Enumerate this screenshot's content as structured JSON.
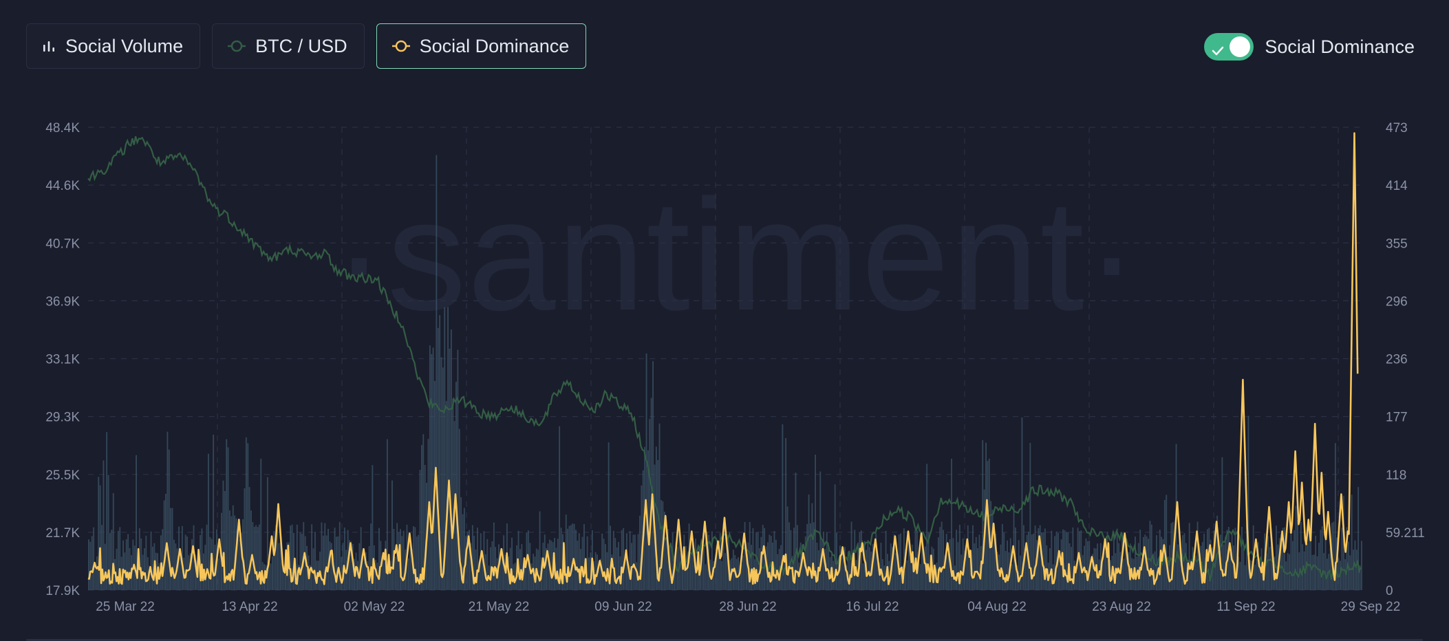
{
  "toolbar": {
    "metrics": [
      {
        "label": "Social Volume",
        "icon": "bar-chart-icon",
        "color": "#e4e8f1",
        "active": false
      },
      {
        "label": "BTC / USD",
        "icon": "circle-line-icon",
        "color": "#335e45",
        "active": false
      },
      {
        "label": "Social Dominance",
        "icon": "circle-line-icon",
        "color": "#f7c65b",
        "active": true
      }
    ]
  },
  "toggle": {
    "label": "Social Dominance",
    "on": true,
    "color": "#40b98d"
  },
  "watermark": "·santiment·",
  "chart_data": {
    "type": "line",
    "x_ticks": [
      "25 Mar 22",
      "13 Apr 22",
      "02 May 22",
      "21 May 22",
      "09 Jun 22",
      "28 Jun 22",
      "16 Jul 22",
      "04 Aug 22",
      "23 Aug 22",
      "11 Sep 22",
      "29 Sep 22"
    ],
    "y_left_ticks": [
      "48.4K",
      "44.6K",
      "40.7K",
      "36.9K",
      "33.1K",
      "29.3K",
      "25.5K",
      "21.7K",
      "17.9K"
    ],
    "y_right_ticks": [
      "473",
      "414",
      "355",
      "296",
      "236",
      "177",
      "118",
      "59.211",
      "0"
    ],
    "x_range": [
      "2022-03-20",
      "2022-09-30"
    ],
    "y_left_range": [
      17900,
      48400
    ],
    "y_right_range": [
      0,
      473
    ],
    "grid": true,
    "colors": {
      "btc": "#335e45",
      "social_dominance": "#f7c65b",
      "social_volume": "#3c5468"
    },
    "series": [
      {
        "name": "BTC / USD",
        "axis": "left",
        "points": [
          [
            "2022-03-20",
            45000
          ],
          [
            "2022-03-23",
            45800
          ],
          [
            "2022-03-26",
            47200
          ],
          [
            "2022-03-28",
            47800
          ],
          [
            "2022-03-31",
            46000
          ],
          [
            "2022-04-03",
            46500
          ],
          [
            "2022-04-05",
            45700
          ],
          [
            "2022-04-08",
            43200
          ],
          [
            "2022-04-10",
            42600
          ],
          [
            "2022-04-12",
            41800
          ],
          [
            "2022-04-15",
            40400
          ],
          [
            "2022-04-17",
            39700
          ],
          [
            "2022-04-20",
            40400
          ],
          [
            "2022-04-23",
            39800
          ],
          [
            "2022-04-25",
            40200
          ],
          [
            "2022-04-27",
            38900
          ],
          [
            "2022-04-30",
            38500
          ],
          [
            "2022-05-03",
            38400
          ],
          [
            "2022-05-05",
            36700
          ],
          [
            "2022-05-07",
            35400
          ],
          [
            "2022-05-09",
            32300
          ],
          [
            "2022-05-11",
            30200
          ],
          [
            "2022-05-13",
            29700
          ],
          [
            "2022-05-15",
            30300
          ],
          [
            "2022-05-17",
            30300
          ],
          [
            "2022-05-19",
            29500
          ],
          [
            "2022-05-21",
            29400
          ],
          [
            "2022-05-23",
            30000
          ],
          [
            "2022-05-26",
            29300
          ],
          [
            "2022-05-28",
            28700
          ],
          [
            "2022-05-30",
            30600
          ],
          [
            "2022-06-01",
            31700
          ],
          [
            "2022-06-03",
            30500
          ],
          [
            "2022-06-05",
            29800
          ],
          [
            "2022-06-07",
            30800
          ],
          [
            "2022-06-09",
            30100
          ],
          [
            "2022-06-11",
            29400
          ],
          [
            "2022-06-13",
            26500
          ],
          [
            "2022-06-15",
            22600
          ],
          [
            "2022-06-18",
            19200
          ],
          [
            "2022-06-20",
            20500
          ],
          [
            "2022-06-23",
            21100
          ],
          [
            "2022-06-26",
            21300
          ],
          [
            "2022-06-29",
            20200
          ],
          [
            "2022-07-01",
            19400
          ],
          [
            "2022-07-04",
            19300
          ],
          [
            "2022-07-07",
            20600
          ],
          [
            "2022-07-09",
            21700
          ],
          [
            "2022-07-12",
            19900
          ],
          [
            "2022-07-14",
            20200
          ],
          [
            "2022-07-17",
            21000
          ],
          [
            "2022-07-19",
            22400
          ],
          [
            "2022-07-21",
            23200
          ],
          [
            "2022-07-23",
            22800
          ],
          [
            "2022-07-26",
            21300
          ],
          [
            "2022-07-28",
            23900
          ],
          [
            "2022-07-30",
            23700
          ],
          [
            "2022-08-02",
            23000
          ],
          [
            "2022-08-04",
            22700
          ],
          [
            "2022-08-06",
            23300
          ],
          [
            "2022-08-09",
            23300
          ],
          [
            "2022-08-11",
            24500
          ],
          [
            "2022-08-13",
            24400
          ],
          [
            "2022-08-15",
            24200
          ],
          [
            "2022-08-17",
            23600
          ],
          [
            "2022-08-19",
            21700
          ],
          [
            "2022-08-22",
            21500
          ],
          [
            "2022-08-25",
            21400
          ],
          [
            "2022-08-27",
            20300
          ],
          [
            "2022-08-30",
            19800
          ],
          [
            "2022-09-02",
            20000
          ],
          [
            "2022-09-05",
            19900
          ],
          [
            "2022-09-07",
            18800
          ],
          [
            "2022-09-09",
            21300
          ],
          [
            "2022-09-11",
            21800
          ],
          [
            "2022-09-13",
            20200
          ],
          [
            "2022-09-15",
            19800
          ],
          [
            "2022-09-18",
            19500
          ],
          [
            "2022-09-20",
            18900
          ],
          [
            "2022-09-22",
            19400
          ],
          [
            "2022-09-25",
            18900
          ],
          [
            "2022-09-27",
            19100
          ],
          [
            "2022-09-29",
            19600
          ],
          [
            "2022-09-30",
            19400
          ]
        ]
      },
      {
        "name": "Social Dominance",
        "axis": "right",
        "spikes": [
          [
            "2022-03-21",
            28
          ],
          [
            "2022-03-27",
            26
          ],
          [
            "2022-04-01",
            48
          ],
          [
            "2022-04-03",
            42
          ],
          [
            "2022-04-05",
            45
          ],
          [
            "2022-04-09",
            52
          ],
          [
            "2022-04-12",
            72
          ],
          [
            "2022-04-14",
            36
          ],
          [
            "2022-04-17",
            55
          ],
          [
            "2022-04-18",
            88
          ],
          [
            "2022-04-22",
            38
          ],
          [
            "2022-04-26",
            40
          ],
          [
            "2022-04-29",
            48
          ],
          [
            "2022-05-01",
            42
          ],
          [
            "2022-05-04",
            38
          ],
          [
            "2022-05-06",
            46
          ],
          [
            "2022-05-08",
            58
          ],
          [
            "2022-05-11",
            90
          ],
          [
            "2022-05-12",
            125
          ],
          [
            "2022-05-14",
            112
          ],
          [
            "2022-05-15",
            98
          ],
          [
            "2022-05-17",
            55
          ],
          [
            "2022-05-19",
            40
          ],
          [
            "2022-05-22",
            42
          ],
          [
            "2022-05-26",
            36
          ],
          [
            "2022-05-29",
            40
          ],
          [
            "2022-06-02",
            32
          ],
          [
            "2022-06-06",
            30
          ],
          [
            "2022-06-10",
            38
          ],
          [
            "2022-06-13",
            92
          ],
          [
            "2022-06-14",
            98
          ],
          [
            "2022-06-16",
            76
          ],
          [
            "2022-06-18",
            72
          ],
          [
            "2022-06-20",
            60
          ],
          [
            "2022-06-22",
            70
          ],
          [
            "2022-06-24",
            50
          ],
          [
            "2022-06-25",
            74
          ],
          [
            "2022-06-28",
            58
          ],
          [
            "2022-07-01",
            45
          ],
          [
            "2022-07-04",
            35
          ],
          [
            "2022-07-07",
            38
          ],
          [
            "2022-07-10",
            42
          ],
          [
            "2022-07-13",
            44
          ],
          [
            "2022-07-16",
            48
          ],
          [
            "2022-07-18",
            52
          ],
          [
            "2022-07-21",
            55
          ],
          [
            "2022-07-23",
            60
          ],
          [
            "2022-07-25",
            58
          ],
          [
            "2022-07-29",
            48
          ],
          [
            "2022-08-01",
            52
          ],
          [
            "2022-08-04",
            92
          ],
          [
            "2022-08-05",
            68
          ],
          [
            "2022-08-08",
            45
          ],
          [
            "2022-08-10",
            48
          ],
          [
            "2022-08-12",
            55
          ],
          [
            "2022-08-15",
            40
          ],
          [
            "2022-08-18",
            38
          ],
          [
            "2022-08-20",
            34
          ],
          [
            "2022-08-22",
            52
          ],
          [
            "2022-08-25",
            58
          ],
          [
            "2022-08-28",
            44
          ],
          [
            "2022-08-31",
            46
          ],
          [
            "2022-09-02",
            90
          ],
          [
            "2022-09-05",
            60
          ],
          [
            "2022-09-07",
            46
          ],
          [
            "2022-09-08",
            70
          ],
          [
            "2022-09-10",
            48
          ],
          [
            "2022-09-12",
            215
          ],
          [
            "2022-09-14",
            52
          ],
          [
            "2022-09-16",
            85
          ],
          [
            "2022-09-18",
            60
          ],
          [
            "2022-09-19",
            90
          ],
          [
            "2022-09-20",
            142
          ],
          [
            "2022-09-21",
            110
          ],
          [
            "2022-09-22",
            72
          ],
          [
            "2022-09-23",
            170
          ],
          [
            "2022-09-24",
            120
          ],
          [
            "2022-09-25",
            80
          ],
          [
            "2022-09-27",
            98
          ],
          [
            "2022-09-28",
            60
          ],
          [
            "2022-09-29",
            467
          ]
        ]
      },
      {
        "name": "Social Volume",
        "axis": "hidden",
        "spikes": [
          [
            "2022-04-01",
            200
          ],
          [
            "2022-04-10",
            190
          ],
          [
            "2022-04-11",
            150
          ],
          [
            "2022-04-13",
            195
          ],
          [
            "2022-05-10",
            200
          ],
          [
            "2022-05-11",
            305
          ],
          [
            "2022-05-12",
            455
          ],
          [
            "2022-05-13",
            400
          ],
          [
            "2022-05-14",
            380
          ],
          [
            "2022-05-15",
            340
          ],
          [
            "2022-06-13",
            280
          ],
          [
            "2022-06-14",
            260
          ],
          [
            "2022-06-15",
            195
          ],
          [
            "2022-08-04",
            205
          ],
          [
            "2022-09-08",
            100
          ],
          [
            "2022-09-20",
            95
          ]
        ]
      }
    ]
  }
}
